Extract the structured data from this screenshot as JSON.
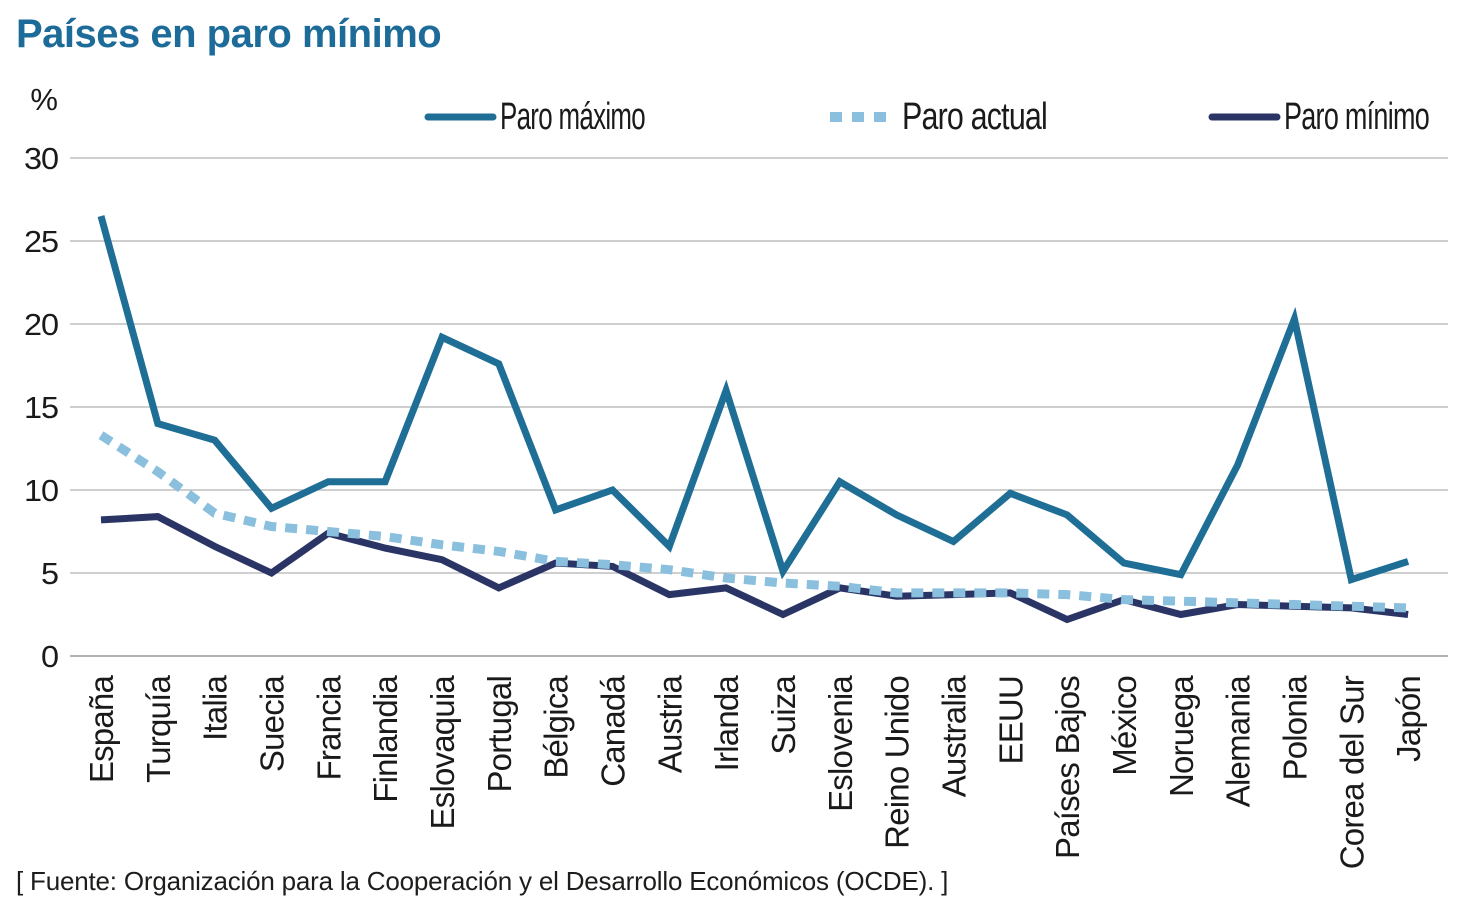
{
  "title": "Países en paro mínimo",
  "footer": "[ Fuente: Organización para la Cooperación y el Desarrollo Económicos (OCDE). ]",
  "colors": {
    "title": "#1d6b99",
    "paro_maximo": "#1f6e96",
    "paro_actual": "#8ac0dd",
    "paro_minimo": "#2a3566",
    "gridline": "#b2b2b2",
    "axis_text": "#1a1a1a"
  },
  "chart_data": {
    "type": "line",
    "title": "Países en paro mínimo",
    "unit_label": "%",
    "ylim": [
      0,
      30
    ],
    "yticks": [
      0,
      5,
      10,
      15,
      20,
      25,
      30
    ],
    "grid": true,
    "legend_position": "top",
    "categories": [
      "España",
      "Turquía",
      "Italia",
      "Suecia",
      "Francia",
      "Finlandia",
      "Eslovaquia",
      "Portugal",
      "Bélgica",
      "Canadá",
      "Austria",
      "Irlanda",
      "Suiza",
      "Eslovenia",
      "Reino Unido",
      "Australia",
      "EEUU",
      "Países Bajos",
      "México",
      "Noruega",
      "Alemania",
      "Polonia",
      "Corea del Sur",
      "Japón"
    ],
    "series": [
      {
        "name": "Paro máximo",
        "style": "solid",
        "color": "#1f6e96",
        "values": [
          26.5,
          14.0,
          13.0,
          8.9,
          10.5,
          10.5,
          19.2,
          17.6,
          8.8,
          10.0,
          6.6,
          16.0,
          5.1,
          10.5,
          8.5,
          6.9,
          9.8,
          8.5,
          5.6,
          4.9,
          11.5,
          20.3,
          4.6,
          5.7
        ]
      },
      {
        "name": "Paro actual",
        "style": "dashed",
        "color": "#8ac0dd",
        "values": [
          13.3,
          11.1,
          8.6,
          7.8,
          7.5,
          7.2,
          6.7,
          6.3,
          5.7,
          5.5,
          5.2,
          4.7,
          4.4,
          4.2,
          3.8,
          3.8,
          3.8,
          3.7,
          3.4,
          3.3,
          3.2,
          3.1,
          3.0,
          2.9
        ]
      },
      {
        "name": "Paro mínimo",
        "style": "solid",
        "color": "#2a3566",
        "values": [
          8.2,
          8.4,
          6.6,
          5.0,
          7.4,
          6.5,
          5.8,
          4.1,
          5.6,
          5.4,
          3.7,
          4.1,
          2.5,
          4.1,
          3.6,
          3.7,
          3.8,
          2.2,
          3.4,
          2.5,
          3.1,
          3.0,
          2.9,
          2.5
        ]
      }
    ]
  }
}
